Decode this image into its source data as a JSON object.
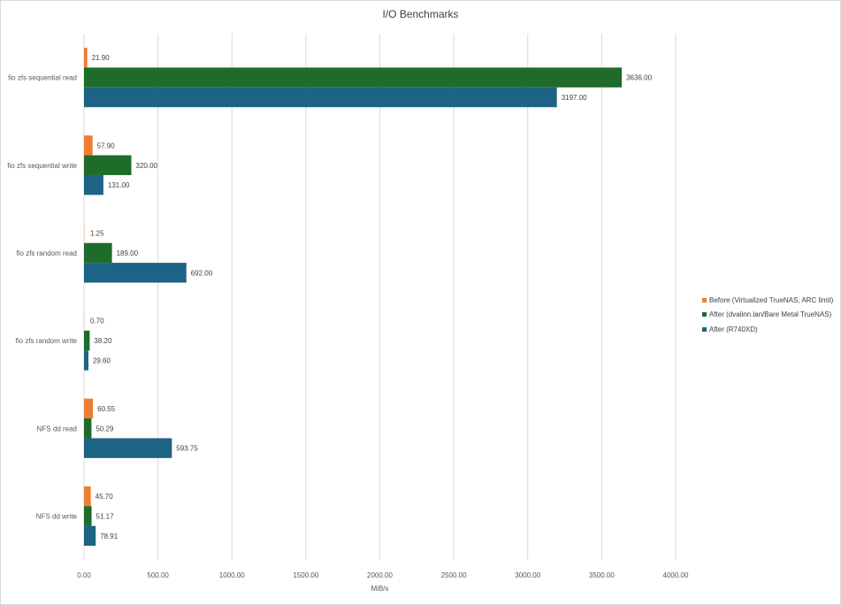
{
  "chart_data": {
    "type": "bar",
    "orientation": "horizontal",
    "title": "I/O Benchmarks",
    "xlabel": "MiB/s",
    "ylabel": "",
    "xlim": [
      0,
      4000
    ],
    "x_ticks": [
      "0.00",
      "500.00",
      "1000.00",
      "1500.00",
      "2000.00",
      "2500.00",
      "3000.00",
      "3500.00",
      "4000.00"
    ],
    "grid": true,
    "legend_position": "right",
    "categories": [
      "fio zfs sequential read",
      "fio zfs sequential write",
      "fio zfs random read",
      "fio zfs random write",
      "NFS dd read",
      "NFS dd write"
    ],
    "series": [
      {
        "name": "Before (Virtualized TrueNAS, ARC limit)",
        "color": "#ed7d31",
        "values": [
          21.9,
          57.9,
          1.25,
          0.7,
          60.55,
          45.7
        ],
        "labels": [
          "21.90",
          "57.90",
          "1.25",
          "0.70",
          "60.55",
          "45.70"
        ]
      },
      {
        "name": "After (dvalinn.lan/Bare Metal TrueNAS)",
        "color": "#1e6b2a",
        "values": [
          3636.0,
          320.0,
          189.0,
          38.2,
          50.29,
          51.17
        ],
        "labels": [
          "3636.00",
          "320.00",
          "189.00",
          "38.20",
          "50.29",
          "51.17"
        ]
      },
      {
        "name": "After (R740XD)",
        "color": "#1c6385",
        "values": [
          3197.0,
          131.0,
          692.0,
          29.6,
          593.75,
          78.91
        ],
        "labels": [
          "3197.00",
          "131.00",
          "692.00",
          "29.60",
          "593.75",
          "78.91"
        ]
      }
    ]
  }
}
